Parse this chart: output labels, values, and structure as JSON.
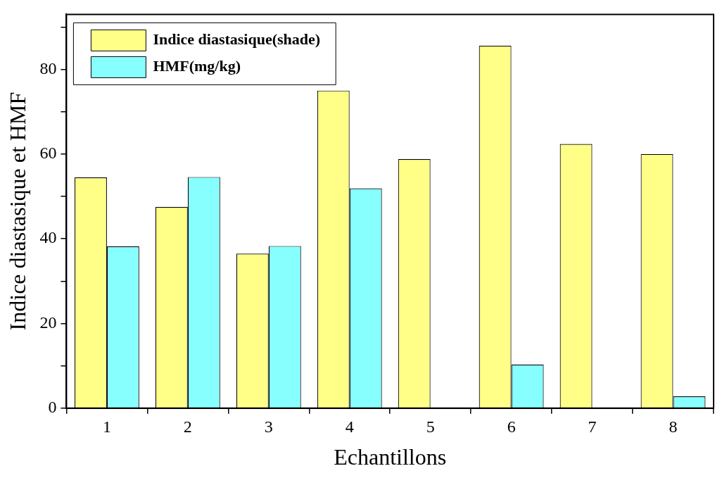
{
  "chart_data": {
    "type": "bar",
    "xlabel": "Echantillons",
    "ylabel": "Indice diastasique et HMF",
    "categories": [
      "1",
      "2",
      "3",
      "4",
      "5",
      "6",
      "7",
      "8"
    ],
    "series": [
      {
        "name": "Indice diastasique(shade)",
        "color": "#ffff88",
        "values": [
          54.5,
          47.5,
          36.5,
          75,
          58.8,
          85.6,
          62.4,
          60
        ]
      },
      {
        "name": "HMF(mg/kg)",
        "color": "#88ffff",
        "values": [
          38.2,
          54.6,
          38.3,
          51.9,
          0,
          10.3,
          null,
          2.8
        ]
      }
    ],
    "ylim": [
      0,
      93
    ],
    "yticks": [
      0,
      {
        "value": 10,
        "label": null
      },
      20,
      {
        "value": 30,
        "label": null
      },
      40,
      {
        "value": 50,
        "label": null
      },
      60,
      {
        "value": 70,
        "label": null
      },
      80,
      {
        "value": 90,
        "label": null
      }
    ],
    "grid": false,
    "legend": "top left"
  }
}
